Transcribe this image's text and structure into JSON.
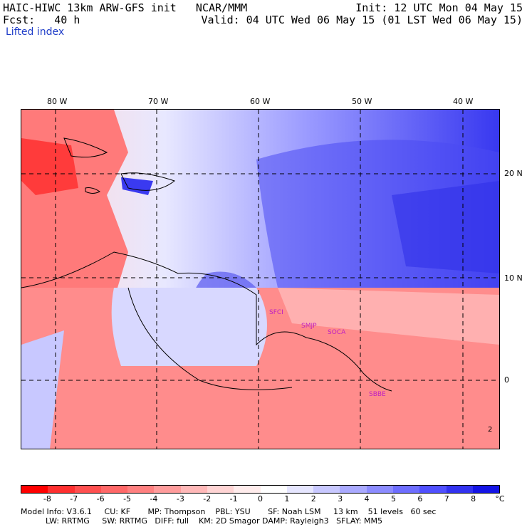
{
  "header": {
    "title": "HAIC-HIWC 13km ARW-GFS init   NCAR/MMM",
    "init": "Init: 12 UTC Mon 04 May 15",
    "fcst": "Fcst:   40 h",
    "valid": "Valid: 04 UTC Wed 06 May 15 (01 LST Wed 06 May 15)",
    "field": "Lifted index"
  },
  "map": {
    "lon_labels": [
      "80 W",
      "70 W",
      "60 W",
      "50 W",
      "40 W"
    ],
    "lat_labels": [
      "20 N",
      "10 N",
      "0"
    ],
    "edge_label": "2",
    "sites": [
      "SFCI",
      "SMJP",
      "SOCA",
      "SBBE"
    ],
    "colors": {
      "negative_strong": "#ff2020",
      "neutral": "#ffffff",
      "positive_strong": "#1010e0"
    }
  },
  "colorbar": {
    "ticks": [
      "-8",
      "-7",
      "-6",
      "-5",
      "-4",
      "-3",
      "-2",
      "-1",
      "0",
      "1",
      "2",
      "3",
      "4",
      "5",
      "6",
      "7",
      "8"
    ],
    "unit": "°C",
    "colors": [
      "#ff0000",
      "#ff3030",
      "#ff5050",
      "#ff6868",
      "#ff8080",
      "#ff9c9c",
      "#ffb8b8",
      "#ffd4d4",
      "#ffecec",
      "#ffffff",
      "#e6e6ff",
      "#c8c8ff",
      "#aaaaff",
      "#8c8cff",
      "#6e6eff",
      "#5050ff",
      "#3232f0",
      "#1414e6"
    ]
  },
  "model_info": {
    "line1": "Model Info: V3.6.1     CU: KF       MP: Thompson    PBL: YSU       SF: Noah LSM     13 km    51 levels   60 sec",
    "line2": "          LW: RRTMG     SW: RRTMG   DIFF: full    KM: 2D Smagor DAMP: Rayleigh3   SFLAY: MM5"
  }
}
